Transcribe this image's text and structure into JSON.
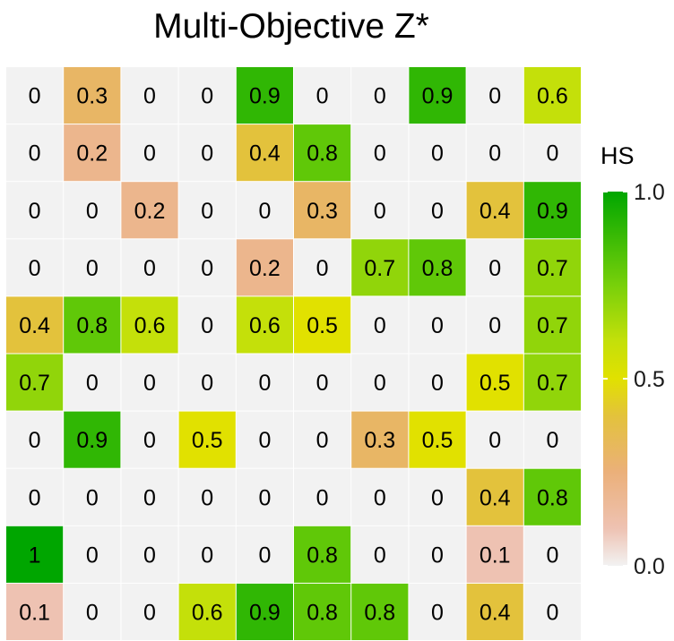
{
  "chart_data": {
    "type": "heatmap",
    "title": "Multi-Objective Z*",
    "xlabel": "",
    "ylabel": "",
    "legend": {
      "title": "HS",
      "placement": "right",
      "range": [
        0,
        1
      ],
      "ticks": [
        {
          "value": 1.0,
          "label": "1.0"
        },
        {
          "value": 0.5,
          "label": "0.5"
        },
        {
          "value": 0.0,
          "label": "0.0"
        }
      ]
    },
    "color_stops": [
      {
        "value": 0.0,
        "color": "#f2f2f2"
      },
      {
        "value": 0.1,
        "color": "#eec2b2"
      },
      {
        "value": 0.25,
        "color": "#ebb07a"
      },
      {
        "value": 0.4,
        "color": "#e3c23c"
      },
      {
        "value": 0.5,
        "color": "#e1e100"
      },
      {
        "value": 0.6,
        "color": "#c4e00a"
      },
      {
        "value": 0.75,
        "color": "#78d00a"
      },
      {
        "value": 1.0,
        "color": "#00a600"
      }
    ],
    "grid": false,
    "values": [
      [
        "0",
        "0.3",
        "0",
        "0",
        "0.9",
        "0",
        "0",
        "0.9",
        "0",
        "0.6"
      ],
      [
        "0",
        "0.2",
        "0",
        "0",
        "0.4",
        "0.8",
        "0",
        "0",
        "0",
        "0"
      ],
      [
        "0",
        "0",
        "0.2",
        "0",
        "0",
        "0.3",
        "0",
        "0",
        "0.4",
        "0.9"
      ],
      [
        "0",
        "0",
        "0",
        "0",
        "0.2",
        "0",
        "0.7",
        "0.8",
        "0",
        "0.7"
      ],
      [
        "0.4",
        "0.8",
        "0.6",
        "0",
        "0.6",
        "0.5",
        "0",
        "0",
        "0",
        "0.7"
      ],
      [
        "0.7",
        "0",
        "0",
        "0",
        "0",
        "0",
        "0",
        "0",
        "0.5",
        "0.7"
      ],
      [
        "0",
        "0.9",
        "0",
        "0.5",
        "0",
        "0",
        "0.3",
        "0.5",
        "0",
        "0"
      ],
      [
        "0",
        "0",
        "0",
        "0",
        "0",
        "0",
        "0",
        "0",
        "0.4",
        "0.8"
      ],
      [
        "1",
        "0",
        "0",
        "0",
        "0",
        "0.8",
        "0",
        "0",
        "0.1",
        "0"
      ],
      [
        "0.1",
        "0",
        "0",
        "0.6",
        "0.9",
        "0.8",
        "0.8",
        "0",
        "0.4",
        "0"
      ]
    ]
  }
}
